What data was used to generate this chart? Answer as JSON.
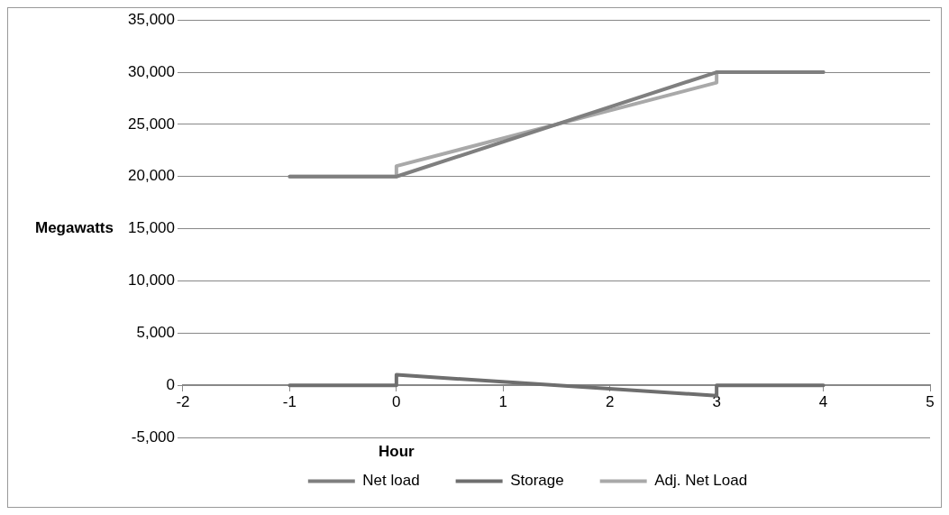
{
  "chart_data": {
    "type": "line",
    "xlabel": "Hour",
    "ylabel": "Megawatts",
    "xlim": [
      -2,
      5
    ],
    "xticks": [
      -2,
      -1,
      0,
      1,
      2,
      3,
      4,
      5
    ],
    "ylim": [
      -5000,
      35000
    ],
    "yticks": [
      {
        "value": -5000,
        "label": "-5,000"
      },
      {
        "value": 0,
        "label": "0"
      },
      {
        "value": 5000,
        "label": "5,000"
      },
      {
        "value": 10000,
        "label": "10,000"
      },
      {
        "value": 15000,
        "label": "15,000"
      },
      {
        "value": 20000,
        "label": "20,000"
      },
      {
        "value": 25000,
        "label": "25,000"
      },
      {
        "value": 30000,
        "label": "30,000"
      },
      {
        "value": 35000,
        "label": "35,000"
      }
    ],
    "grid": "y",
    "legend": "bottom",
    "marker": "none",
    "line_style": "solid",
    "series": [
      {
        "name": "Net load",
        "color": "#7f7f7f",
        "x": [
          -1,
          0,
          3,
          4
        ],
        "values": [
          20000,
          20000,
          30000,
          30000
        ]
      },
      {
        "name": "Storage",
        "color": "#6e6e6e",
        "x": [
          -1,
          0,
          0,
          3,
          3,
          4
        ],
        "values": [
          0,
          0,
          1000,
          -1000,
          0,
          0
        ]
      },
      {
        "name": "Adj. Net Load",
        "color": "#a9a9a9",
        "x": [
          -1,
          0,
          0,
          3,
          3,
          4
        ],
        "values": [
          20000,
          20000,
          21000,
          29000,
          30000,
          30000
        ]
      }
    ]
  }
}
